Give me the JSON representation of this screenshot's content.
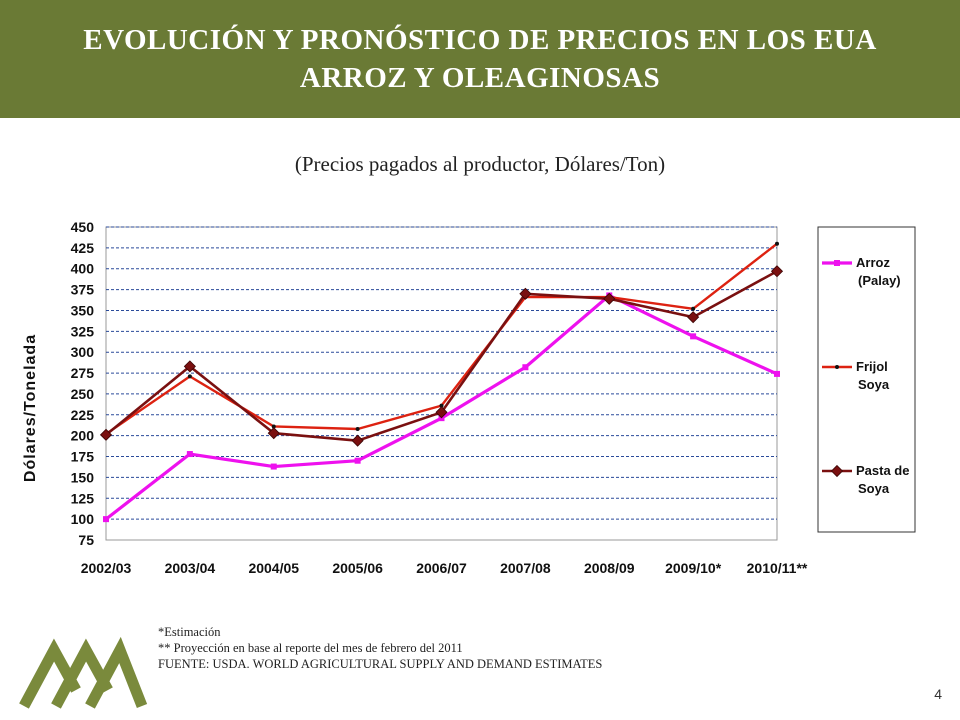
{
  "header": {
    "title_line1": "EVOLUCIÓN Y PRONÓSTICO DE PRECIOS EN LOS EUA",
    "title_line2": "ARROZ Y OLEAGINOSAS"
  },
  "subtitle": "(Precios pagados al productor, Dólares/Ton)",
  "notes": {
    "line1": "*Estimación",
    "line2": "** Proyección en base al reporte  del mes de febrero del 2011",
    "line3": "FUENTE: USDA. WORLD AGRICULTURAL SUPPLY AND DEMAND ESTIMATES"
  },
  "page_number": "4",
  "colors": {
    "header_bg": "#6a7a35",
    "logo": "#7a8a3c"
  },
  "chart_data": {
    "type": "line",
    "title": "",
    "xlabel": "",
    "ylabel": "Dólares/Tonelada",
    "ylim": [
      75,
      450
    ],
    "yticks": [
      75,
      100,
      125,
      150,
      175,
      200,
      225,
      250,
      275,
      300,
      325,
      350,
      375,
      400,
      425,
      450
    ],
    "grid": true,
    "legend_position": "right",
    "categories": [
      "2002/03",
      "2003/04",
      "2004/05",
      "2005/06",
      "2006/07",
      "2007/08",
      "2008/09",
      "2009/10*",
      "2010/11**"
    ],
    "series": [
      {
        "name": "Arroz (Palay)",
        "legend_lines": [
          "Arroz",
          "(Palay)"
        ],
        "color": "#ee11ee",
        "marker": "square",
        "values": [
          100,
          178,
          163,
          170,
          221,
          282,
          368,
          319,
          274
        ]
      },
      {
        "name": "Frijol Soya",
        "legend_lines": [
          "Frijol",
          "Soya"
        ],
        "color": "#dd2211",
        "marker": "dot",
        "values": [
          202,
          271,
          211,
          208,
          236,
          366,
          366,
          352,
          430
        ]
      },
      {
        "name": "Pasta de Soya",
        "legend_lines": [
          "Pasta de",
          "Soya"
        ],
        "color": "#7a1010",
        "marker": "diamond",
        "values": [
          201,
          283,
          203,
          194,
          228,
          370,
          364,
          342,
          397
        ]
      }
    ]
  }
}
